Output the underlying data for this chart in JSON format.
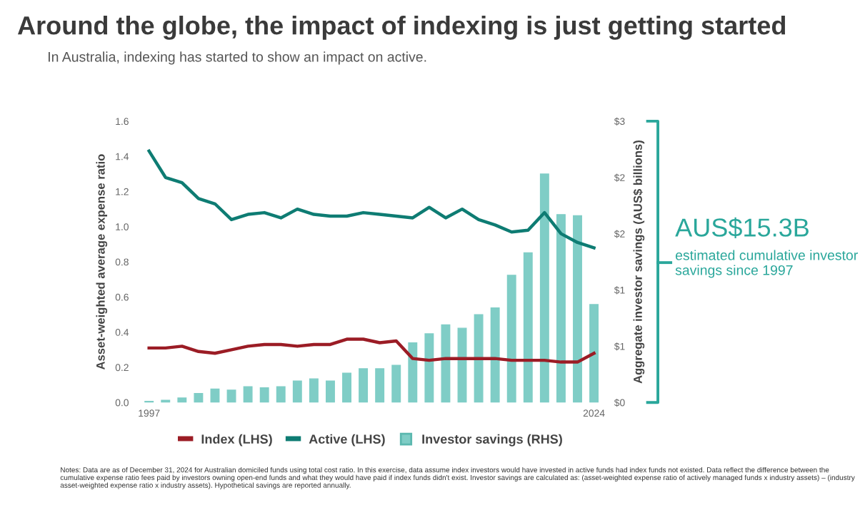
{
  "chart_data": {
    "type": "line",
    "title": "Around the globe, the impact of indexing is just getting started",
    "subtitle": "In Australia, indexing has started to show an impact on active.",
    "ylabel": "Asset-weighted average expense ratio",
    "y2label": "Aggregate investor savings (AUS$ billions)",
    "categories": [
      "1997",
      null,
      null,
      null,
      null,
      null,
      null,
      null,
      null,
      null,
      null,
      null,
      null,
      null,
      null,
      null,
      null,
      null,
      null,
      null,
      null,
      null,
      null,
      null,
      null,
      null,
      null,
      "2024"
    ],
    "series": [
      {
        "name": "Index (LHS)",
        "color": "#9b1c25",
        "values": [
          0.31,
          0.31,
          0.32,
          0.29,
          0.28,
          0.3,
          0.32,
          0.33,
          0.33,
          0.32,
          0.33,
          0.33,
          0.36,
          0.36,
          0.34,
          0.35,
          0.25,
          0.24,
          0.25,
          0.25,
          0.25,
          0.25,
          0.24,
          0.24,
          0.24,
          0.23,
          0.23,
          0.28
        ]
      },
      {
        "name": "Active (LHS)",
        "color": "#0e7c73",
        "values": [
          1.43,
          1.28,
          1.25,
          1.16,
          1.13,
          1.04,
          1.07,
          1.08,
          1.05,
          1.1,
          1.07,
          1.06,
          1.06,
          1.08,
          1.07,
          1.06,
          1.05,
          1.11,
          1.05,
          1.1,
          1.04,
          1.01,
          0.97,
          0.98,
          1.08,
          0.96,
          0.91,
          0.88
        ]
      },
      {
        "name": "Investor savings (RHS)",
        "type": "bar",
        "axis": "y2",
        "color": "#7fcdc6",
        "values": [
          0.01,
          0.02,
          0.04,
          0.08,
          0.12,
          0.11,
          0.14,
          0.13,
          0.14,
          0.19,
          0.21,
          0.19,
          0.26,
          0.3,
          0.3,
          0.33,
          0.53,
          0.61,
          0.69,
          0.66,
          0.78,
          0.84,
          1.13,
          1.33,
          2.03,
          1.67,
          1.66,
          0.87
        ]
      }
    ],
    "ylim": [
      0,
      1.6
    ],
    "yticks": [
      {
        "value": 0,
        "label": "0.0"
      },
      0.2,
      0.4,
      0.6,
      0.8,
      {
        "value": 1,
        "label": "1.0"
      },
      1.2,
      1.4,
      1.6
    ],
    "y2lim": [
      0,
      2.5
    ],
    "y2ticks": [
      {
        "value": 0,
        "label": "$0"
      },
      {
        "value": 0.5,
        "label": "$1"
      },
      {
        "value": 1,
        "label": "$1"
      },
      {
        "value": 1.5,
        "label": "$2"
      },
      {
        "value": 2,
        "label": "$2"
      },
      {
        "value": 2.5,
        "label": "$3"
      }
    ],
    "grid": false,
    "legend": "bottom",
    "annotations": [
      "AUS$15.3B",
      "estimated cumulative investor savings since 1997",
      "Notes: Data are as of December 31, 2024 for Australian domiciled funds using total cost ratio. In this exercise, data assume index investors would have invested in active funds had index funds not existed. Data reflect the difference between the cumulative expense ratio fees paid by investors owning open-end funds and what they would have paid if index funds didn't exist. Investor savings are calculated as: (asset-weighted expense ratio of actively managed funds x industry assets) – (industry asset-weighted expense ratio x industry assets). Hypothetical savings are reported annually."
    ]
  }
}
